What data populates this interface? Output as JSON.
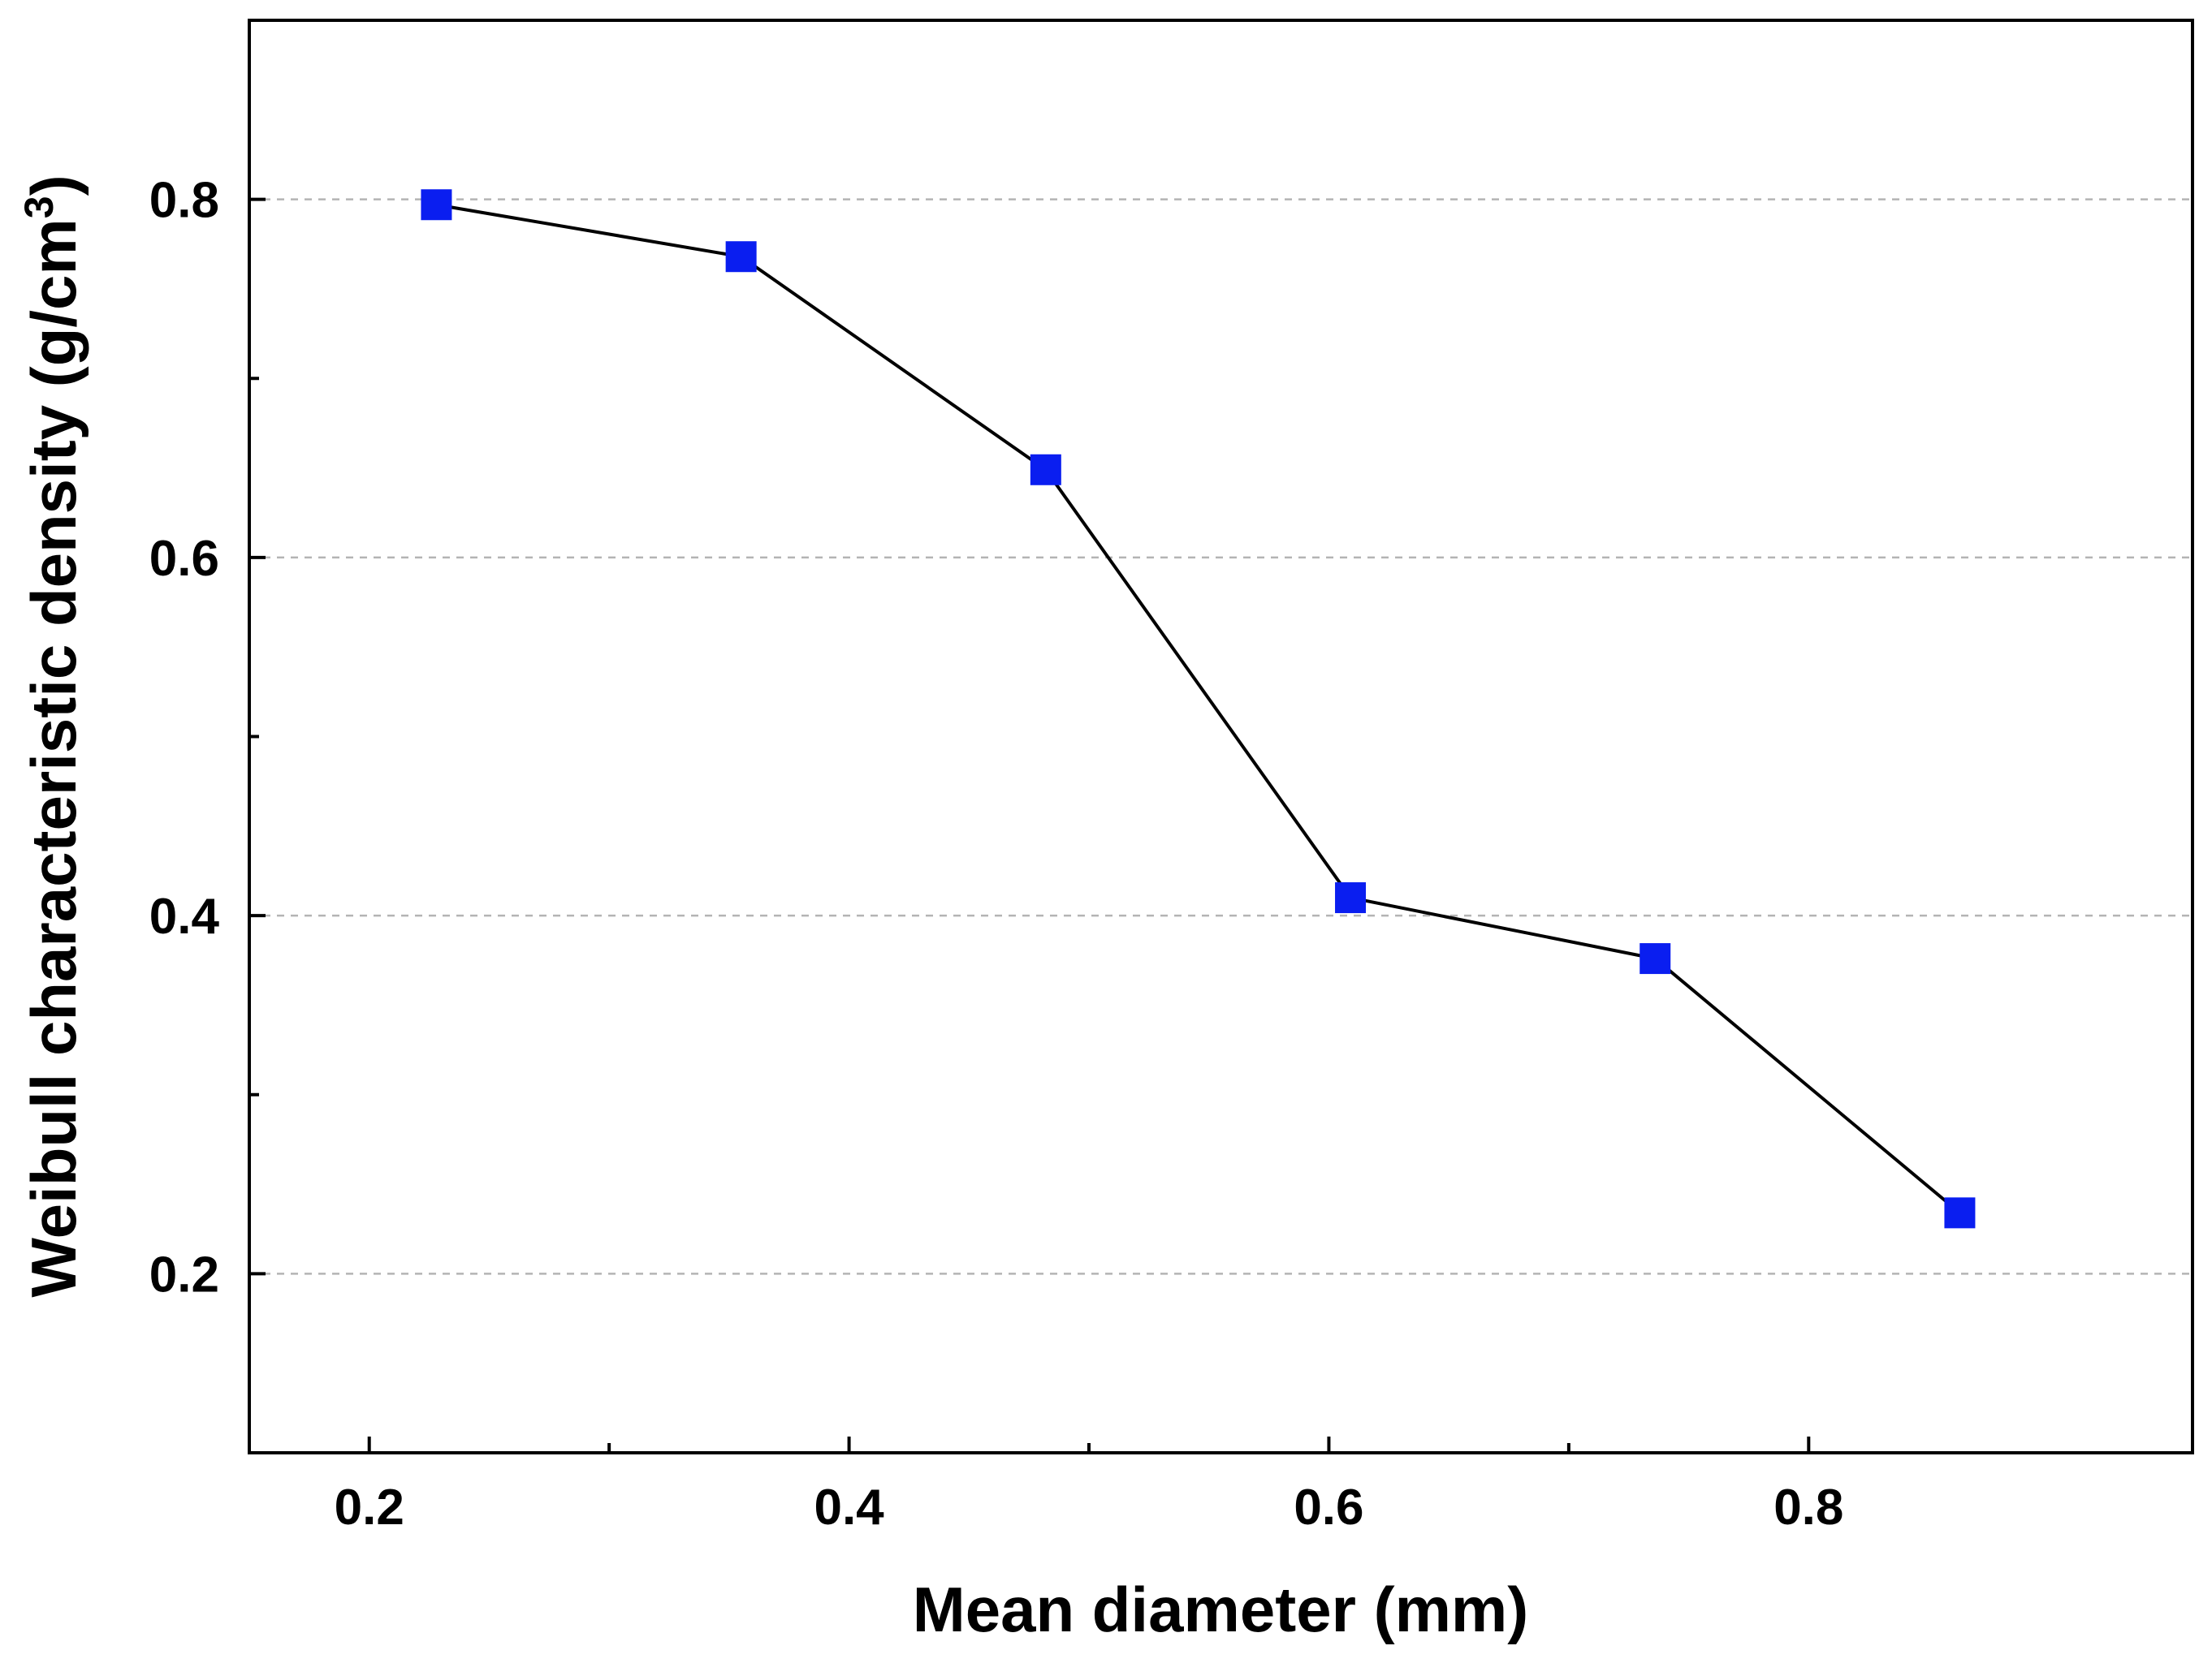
{
  "chart_data": {
    "type": "line",
    "title": "",
    "xlabel": "Mean diameter (mm)",
    "ylabel_main": "Weibull characteristic density (g/cm",
    "ylabel_sup": "3",
    "ylabel_close": ")",
    "xlim": [
      0.15,
      0.96
    ],
    "ylim": [
      0.1,
      0.9
    ],
    "xticks_major": [
      0.2,
      0.4,
      0.6,
      0.8
    ],
    "xticks_minor": [
      0.3,
      0.5,
      0.7
    ],
    "xtick_labels": [
      "0.2",
      "0.4",
      "0.6",
      "0.8"
    ],
    "yticks_major": [
      0.2,
      0.4,
      0.6,
      0.8
    ],
    "yticks_minor": [
      0.3,
      0.5,
      0.7
    ],
    "ytick_labels": [
      "0.2",
      "0.4",
      "0.6",
      "0.8"
    ],
    "grid": "horizontal dashed at major y ticks",
    "series": [
      {
        "name": "Weibull characteristic density",
        "x": [
          0.228,
          0.355,
          0.482,
          0.609,
          0.736,
          0.863
        ],
        "y": [
          0.797,
          0.768,
          0.649,
          0.41,
          0.376,
          0.234
        ],
        "marker": "square",
        "marker_color": "#0a1ef0",
        "line_color": "#000000"
      }
    ]
  }
}
